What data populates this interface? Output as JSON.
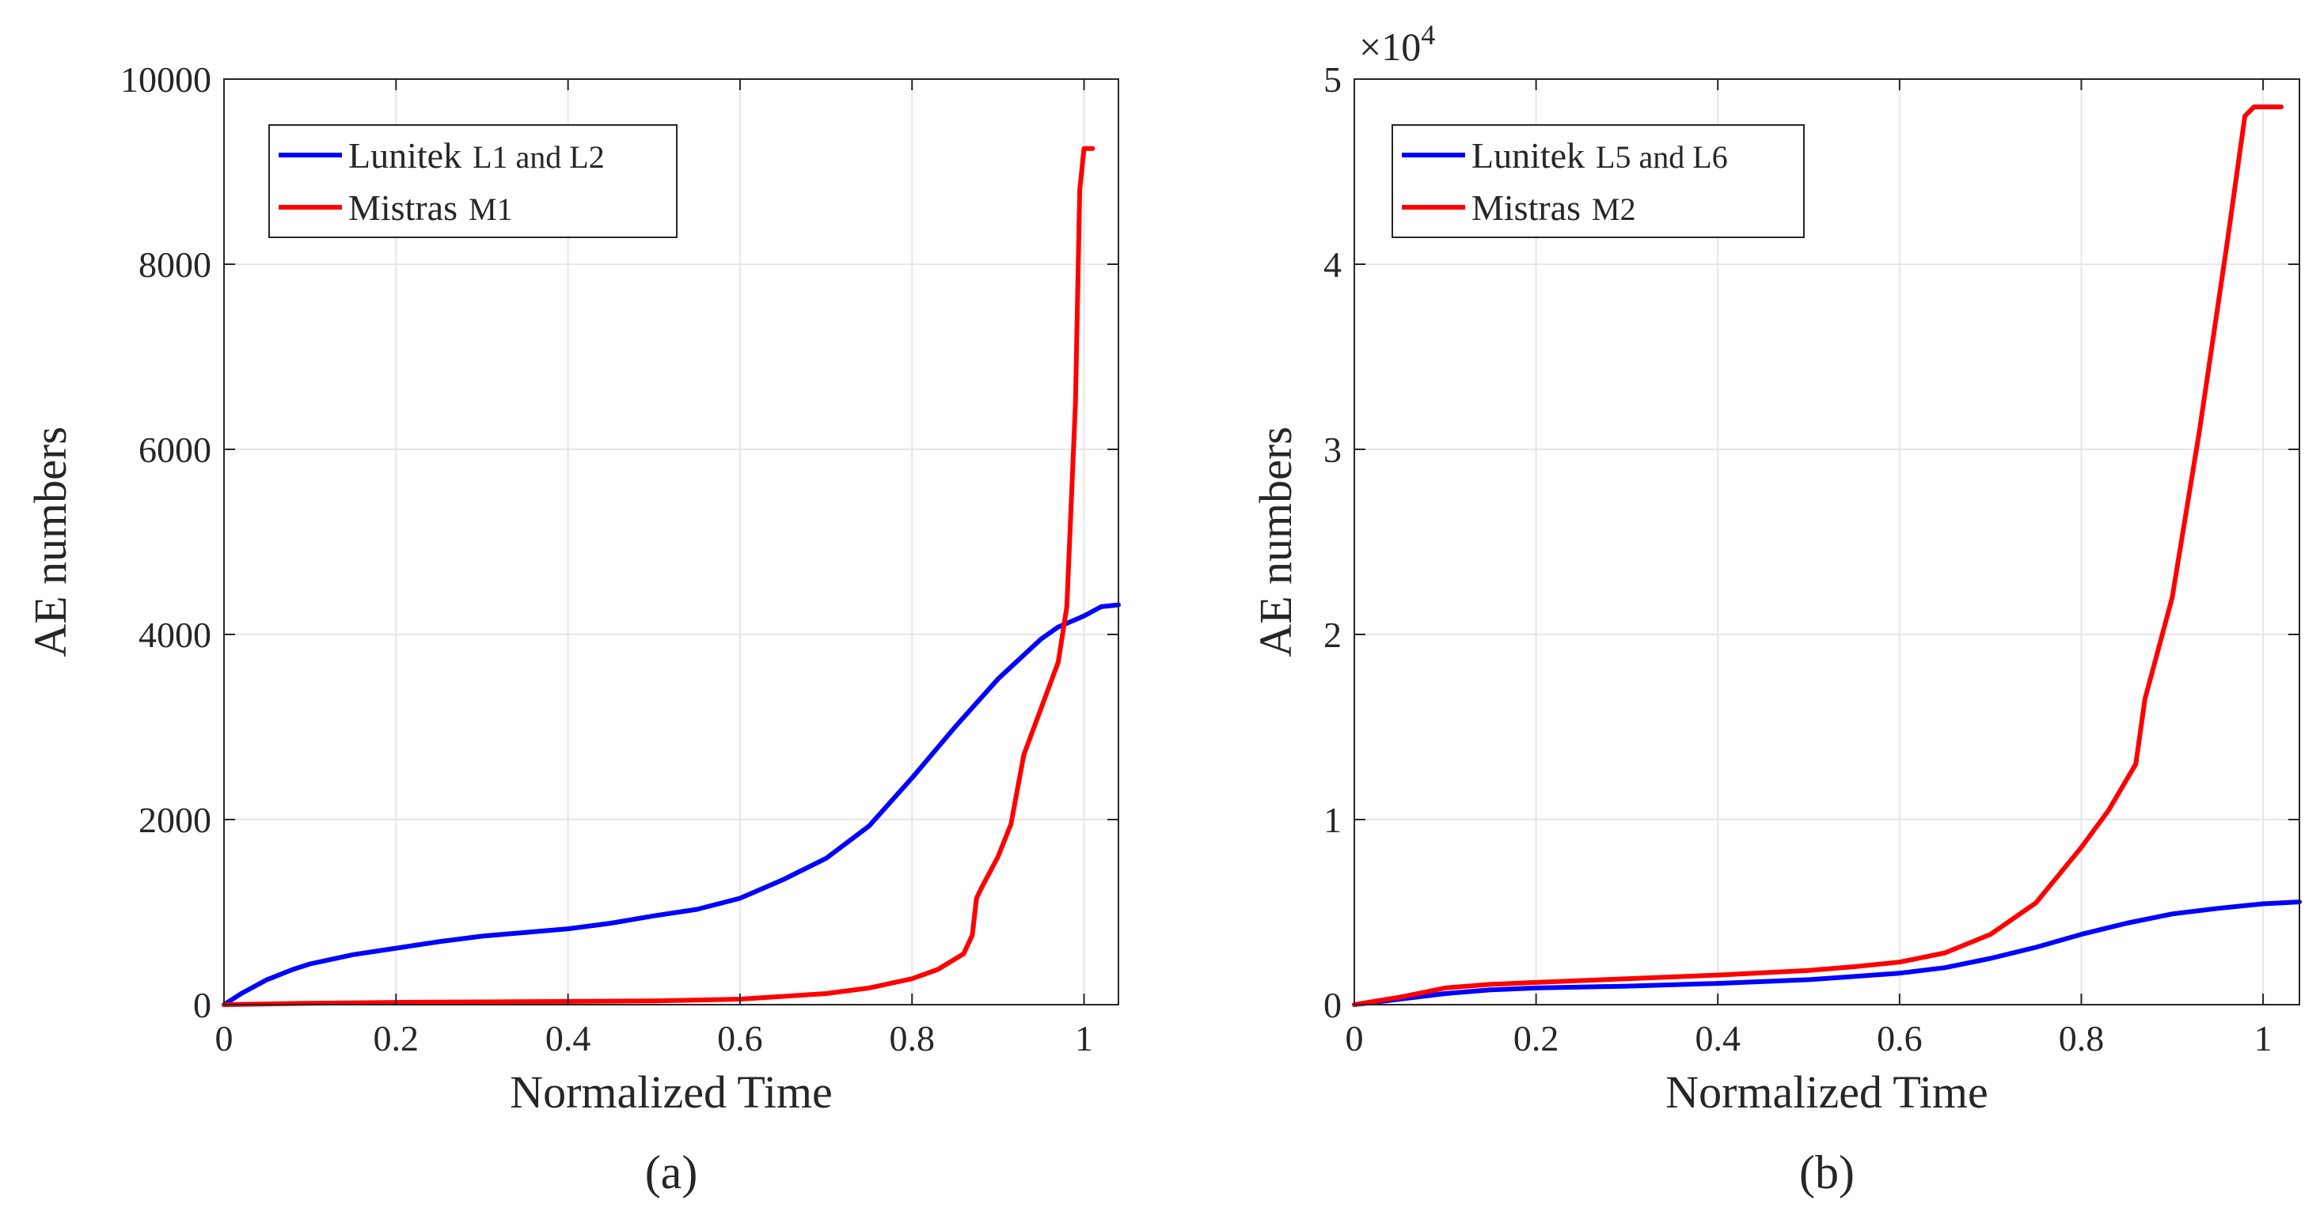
{
  "chart_data": [
    {
      "type": "line",
      "panel_label": "(a)",
      "xlabel": "Normalized Time",
      "ylabel": "AE numbers",
      "xlim": [
        0,
        1.04
      ],
      "ylim": [
        0,
        10000
      ],
      "xticks": [
        0,
        0.2,
        0.4,
        0.6,
        0.8,
        1
      ],
      "xtick_labels": [
        "0",
        "0.2",
        "0.4",
        "0.6",
        "0.8",
        "1"
      ],
      "yticks": [
        0,
        2000,
        4000,
        6000,
        8000,
        10000
      ],
      "ytick_labels": [
        "0",
        "2000",
        "4000",
        "6000",
        "8000",
        "10000"
      ],
      "exponent_label": "",
      "grid": true,
      "legend_position": "top-left",
      "series": [
        {
          "name_main": "Lunitek",
          "name_sub": "L1 and L2",
          "color": "#0000ff",
          "x": [
            0,
            0.02,
            0.05,
            0.08,
            0.1,
            0.15,
            0.2,
            0.25,
            0.3,
            0.35,
            0.4,
            0.45,
            0.5,
            0.55,
            0.6,
            0.65,
            0.7,
            0.75,
            0.8,
            0.85,
            0.9,
            0.95,
            0.97,
            1.0,
            1.02,
            1.04
          ],
          "y": [
            0,
            120,
            270,
            380,
            440,
            540,
            610,
            680,
            740,
            780,
            820,
            880,
            960,
            1030,
            1150,
            1350,
            1580,
            1930,
            2450,
            3000,
            3520,
            3950,
            4080,
            4200,
            4300,
            4320
          ]
        },
        {
          "name_main": "Mistras",
          "name_sub": "M1",
          "color": "#ff0000",
          "x": [
            0,
            0.1,
            0.2,
            0.3,
            0.4,
            0.5,
            0.6,
            0.7,
            0.75,
            0.8,
            0.83,
            0.86,
            0.87,
            0.875,
            0.88,
            0.9,
            0.915,
            0.93,
            0.95,
            0.97,
            0.98,
            0.99,
            0.995,
            1.0,
            1.01
          ],
          "y": [
            0,
            15,
            25,
            30,
            35,
            40,
            60,
            120,
            180,
            280,
            380,
            550,
            750,
            1150,
            1250,
            1600,
            1950,
            2700,
            3200,
            3700,
            4300,
            6500,
            8800,
            9250,
            9250
          ]
        }
      ]
    },
    {
      "type": "line",
      "panel_label": "(b)",
      "xlabel": "Normalized Time",
      "ylabel": "AE numbers",
      "xlim": [
        0,
        1.04
      ],
      "ylim": [
        0,
        50000
      ],
      "xticks": [
        0,
        0.2,
        0.4,
        0.6,
        0.8,
        1
      ],
      "xtick_labels": [
        "0",
        "0.2",
        "0.4",
        "0.6",
        "0.8",
        "1"
      ],
      "yticks": [
        0,
        10000,
        20000,
        30000,
        40000,
        50000
      ],
      "ytick_labels": [
        "0",
        "1",
        "2",
        "3",
        "4",
        "5"
      ],
      "exponent_label": "×10",
      "exponent_power": "4",
      "grid": true,
      "legend_position": "top-left",
      "series": [
        {
          "name_main": "Lunitek",
          "name_sub": "L5 and L6",
          "color": "#0000ff",
          "x": [
            0,
            0.05,
            0.1,
            0.15,
            0.2,
            0.3,
            0.4,
            0.5,
            0.6,
            0.65,
            0.7,
            0.75,
            0.8,
            0.85,
            0.9,
            0.95,
            1.0,
            1.04
          ],
          "y": [
            0,
            300,
            600,
            800,
            900,
            1000,
            1150,
            1350,
            1700,
            2000,
            2500,
            3100,
            3800,
            4400,
            4900,
            5200,
            5450,
            5550
          ]
        },
        {
          "name_main": "Mistras",
          "name_sub": "M2",
          "color": "#ff0000",
          "x": [
            0,
            0.05,
            0.1,
            0.15,
            0.2,
            0.3,
            0.4,
            0.5,
            0.55,
            0.6,
            0.65,
            0.7,
            0.75,
            0.8,
            0.83,
            0.86,
            0.87,
            0.9,
            0.93,
            0.96,
            0.98,
            0.99,
            1.0,
            1.02
          ],
          "y": [
            0,
            400,
            900,
            1100,
            1200,
            1400,
            1600,
            1850,
            2050,
            2300,
            2800,
            3800,
            5500,
            8500,
            10500,
            13000,
            16500,
            22000,
            31000,
            41000,
            48000,
            48500,
            48500,
            48500
          ]
        }
      ]
    }
  ]
}
